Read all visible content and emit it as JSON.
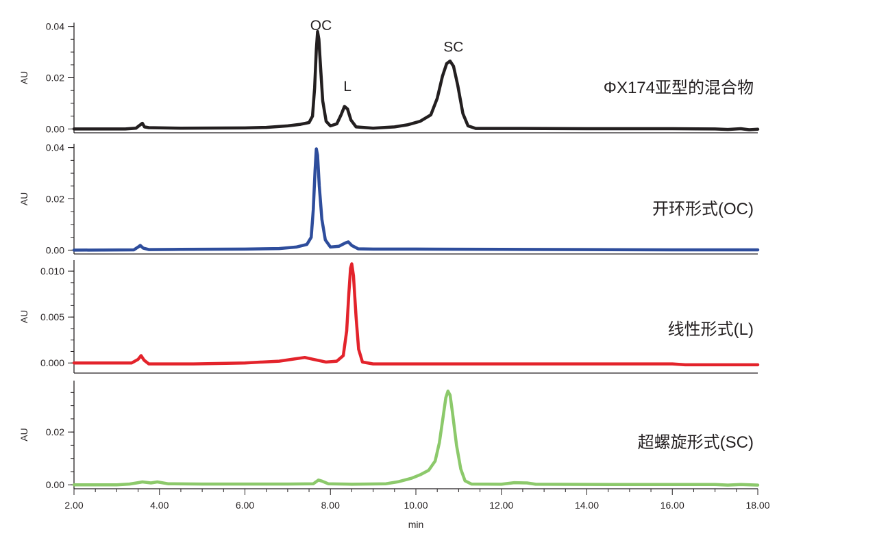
{
  "chart_data": {
    "type": "line",
    "title": "",
    "xlabel": "min",
    "xlim": [
      2.0,
      18.0
    ],
    "x_tick_labels": [
      "2.00",
      "4.00",
      "6.00",
      "8.00",
      "10.00",
      "12.00",
      "14.00",
      "16.00",
      "18.00"
    ],
    "x_ticks": [
      2,
      4,
      6,
      8,
      10,
      12,
      14,
      16,
      18
    ],
    "grid": false,
    "panels": [
      {
        "label": "ΦX174亚型的混合物",
        "color": "#231f20",
        "ylabel": "AU",
        "ylim": [
          -0.0015,
          0.0415
        ],
        "y_ticks": [
          0,
          0.02,
          0.04
        ],
        "y_tick_labels": [
          "0.00",
          "0.02",
          "0.04"
        ],
        "peak_labels": [
          {
            "text": "OC",
            "x": 7.7,
            "y": 0.0385
          },
          {
            "text": "L",
            "x": 8.35,
            "y": 0.0148
          },
          {
            "text": "SC",
            "x": 10.8,
            "y": 0.0302
          }
        ],
        "points": [
          [
            2.0,
            0.0
          ],
          [
            3.2,
            0.0
          ],
          [
            3.45,
            0.0003
          ],
          [
            3.55,
            0.0016
          ],
          [
            3.6,
            0.0022
          ],
          [
            3.65,
            0.0008
          ],
          [
            3.75,
            0.0005
          ],
          [
            4.5,
            0.0003
          ],
          [
            6.0,
            0.0004
          ],
          [
            6.5,
            0.0006
          ],
          [
            7.0,
            0.0012
          ],
          [
            7.3,
            0.0018
          ],
          [
            7.5,
            0.0025
          ],
          [
            7.58,
            0.005
          ],
          [
            7.63,
            0.016
          ],
          [
            7.67,
            0.031
          ],
          [
            7.7,
            0.038
          ],
          [
            7.73,
            0.035
          ],
          [
            7.77,
            0.024
          ],
          [
            7.82,
            0.011
          ],
          [
            7.9,
            0.003
          ],
          [
            8.0,
            0.0012
          ],
          [
            8.15,
            0.002
          ],
          [
            8.25,
            0.0055
          ],
          [
            8.33,
            0.0088
          ],
          [
            8.4,
            0.0078
          ],
          [
            8.48,
            0.0035
          ],
          [
            8.6,
            0.0008
          ],
          [
            9.0,
            0.0003
          ],
          [
            9.5,
            0.0008
          ],
          [
            9.8,
            0.0016
          ],
          [
            10.1,
            0.003
          ],
          [
            10.35,
            0.0055
          ],
          [
            10.5,
            0.012
          ],
          [
            10.62,
            0.0205
          ],
          [
            10.72,
            0.0255
          ],
          [
            10.8,
            0.0265
          ],
          [
            10.88,
            0.0245
          ],
          [
            10.98,
            0.017
          ],
          [
            11.1,
            0.006
          ],
          [
            11.22,
            0.0012
          ],
          [
            11.4,
            0.0002
          ],
          [
            12.5,
            0.0002
          ],
          [
            14.0,
            0.0001
          ],
          [
            16.0,
            0.0001
          ],
          [
            17.0,
            0.0
          ],
          [
            17.3,
            -0.0002
          ],
          [
            17.6,
            0.0001
          ],
          [
            17.8,
            -0.0003
          ],
          [
            18.0,
            -0.0001
          ]
        ]
      },
      {
        "label": "开环形式(OC)",
        "color": "#2e4d9c",
        "ylabel": "AU",
        "ylim": [
          -0.0015,
          0.0415
        ],
        "y_ticks": [
          0,
          0.02,
          0.04
        ],
        "y_tick_labels": [
          "0.00",
          "0.02",
          "0.04"
        ],
        "peak_labels": [],
        "points": [
          [
            2.0,
            0.0
          ],
          [
            3.4,
            0.0001
          ],
          [
            3.5,
            0.0012
          ],
          [
            3.55,
            0.0018
          ],
          [
            3.62,
            0.0008
          ],
          [
            3.75,
            0.0002
          ],
          [
            4.5,
            0.0003
          ],
          [
            6.0,
            0.0004
          ],
          [
            6.8,
            0.0006
          ],
          [
            7.2,
            0.0012
          ],
          [
            7.45,
            0.0022
          ],
          [
            7.55,
            0.005
          ],
          [
            7.6,
            0.016
          ],
          [
            7.64,
            0.031
          ],
          [
            7.67,
            0.0395
          ],
          [
            7.7,
            0.037
          ],
          [
            7.74,
            0.025
          ],
          [
            7.8,
            0.012
          ],
          [
            7.88,
            0.004
          ],
          [
            8.0,
            0.0012
          ],
          [
            8.2,
            0.0015
          ],
          [
            8.35,
            0.0028
          ],
          [
            8.42,
            0.0032
          ],
          [
            8.5,
            0.0018
          ],
          [
            8.65,
            0.0005
          ],
          [
            9.0,
            0.0004
          ],
          [
            10.0,
            0.0004
          ],
          [
            12.0,
            0.0003
          ],
          [
            14.0,
            0.0002
          ],
          [
            16.0,
            0.0001
          ],
          [
            18.0,
            0.0001
          ]
        ]
      },
      {
        "label": "线性形式(L)",
        "color": "#e3232b",
        "ylabel": "AU",
        "ylim": [
          -0.0011,
          0.0112
        ],
        "y_ticks": [
          0,
          0.005,
          0.01
        ],
        "y_tick_labels": [
          "0.000",
          "0.005",
          "0.010"
        ],
        "peak_labels": [],
        "points": [
          [
            2.0,
            0.0
          ],
          [
            3.35,
            0.0
          ],
          [
            3.5,
            0.0004
          ],
          [
            3.57,
            0.0008
          ],
          [
            3.64,
            0.0003
          ],
          [
            3.75,
            -0.0001
          ],
          [
            4.8,
            -0.0001
          ],
          [
            6.0,
            0.0
          ],
          [
            6.8,
            0.0002
          ],
          [
            7.1,
            0.0004
          ],
          [
            7.4,
            0.0006
          ],
          [
            7.6,
            0.0004
          ],
          [
            7.9,
            0.0001
          ],
          [
            8.15,
            0.0002
          ],
          [
            8.3,
            0.0008
          ],
          [
            8.38,
            0.0035
          ],
          [
            8.43,
            0.0075
          ],
          [
            8.47,
            0.0103
          ],
          [
            8.5,
            0.0108
          ],
          [
            8.54,
            0.0095
          ],
          [
            8.6,
            0.005
          ],
          [
            8.66,
            0.0015
          ],
          [
            8.75,
            0.0001
          ],
          [
            9.0,
            -0.0001
          ],
          [
            12.0,
            -0.0001
          ],
          [
            16.0,
            -0.0001
          ],
          [
            16.3,
            -0.0002
          ],
          [
            18.0,
            -0.0002
          ]
        ]
      },
      {
        "label": "超螺旋形式(SC)",
        "color": "#8cc96b",
        "ylabel": "AU",
        "ylim": [
          -0.0015,
          0.0395
        ],
        "y_ticks": [
          0,
          0.02
        ],
        "y_tick_labels": [
          "0.00",
          "0.02"
        ],
        "peak_labels": [],
        "points": [
          [
            2.0,
            0.0
          ],
          [
            3.0,
            0.0
          ],
          [
            3.3,
            0.0003
          ],
          [
            3.5,
            0.0008
          ],
          [
            3.6,
            0.0011
          ],
          [
            3.8,
            0.0007
          ],
          [
            3.95,
            0.0011
          ],
          [
            4.2,
            0.0004
          ],
          [
            5.0,
            0.0003
          ],
          [
            7.0,
            0.0003
          ],
          [
            7.6,
            0.0004
          ],
          [
            7.72,
            0.0018
          ],
          [
            7.8,
            0.0014
          ],
          [
            7.95,
            0.0004
          ],
          [
            8.5,
            0.0002
          ],
          [
            9.3,
            0.0004
          ],
          [
            9.6,
            0.0012
          ],
          [
            9.9,
            0.0025
          ],
          [
            10.1,
            0.0038
          ],
          [
            10.3,
            0.0055
          ],
          [
            10.45,
            0.009
          ],
          [
            10.55,
            0.016
          ],
          [
            10.63,
            0.025
          ],
          [
            10.7,
            0.033
          ],
          [
            10.75,
            0.0355
          ],
          [
            10.8,
            0.034
          ],
          [
            10.86,
            0.027
          ],
          [
            10.95,
            0.015
          ],
          [
            11.05,
            0.006
          ],
          [
            11.15,
            0.0015
          ],
          [
            11.3,
            0.0003
          ],
          [
            12.0,
            0.0002
          ],
          [
            12.3,
            0.0008
          ],
          [
            12.6,
            0.0007
          ],
          [
            12.8,
            0.0002
          ],
          [
            15.0,
            0.0001
          ],
          [
            17.0,
            0.0001
          ],
          [
            17.3,
            -0.0001
          ],
          [
            17.6,
            0.0001
          ],
          [
            18.0,
            -0.0001
          ]
        ]
      }
    ]
  }
}
